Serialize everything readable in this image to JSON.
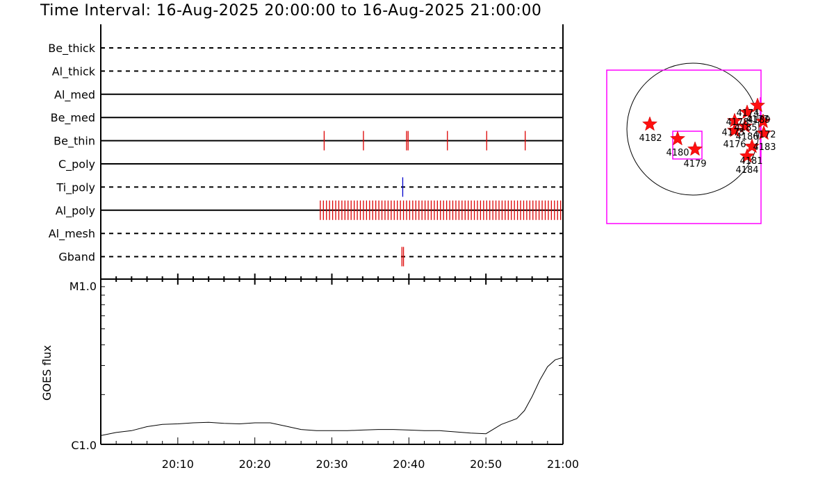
{
  "title": "Time Interval: 16-Aug-2025 20:00:00 to 16-Aug-2025 21:00:00",
  "chart_data": [
    {
      "type": "event-timeline",
      "x_range": [
        "20:00",
        "21:00"
      ],
      "x_tick_labels": [
        "20:10",
        "20:20",
        "20:30",
        "20:40",
        "20:50",
        "21:00"
      ],
      "channels": [
        {
          "name": "Be_thick",
          "line": "dashed",
          "events": []
        },
        {
          "name": "Al_thick",
          "line": "dashed",
          "events": []
        },
        {
          "name": "Al_med",
          "line": "solid",
          "events": []
        },
        {
          "name": "Be_med",
          "line": "solid",
          "events": []
        },
        {
          "name": "Be_thin",
          "line": "solid",
          "color": "#dd0000",
          "events": [
            29.0,
            34.1,
            39.7,
            39.9,
            45.0,
            50.1,
            55.1
          ]
        },
        {
          "name": "C_poly",
          "line": "solid",
          "events": []
        },
        {
          "name": "Ti_poly",
          "line": "dashed",
          "color": "#0000cc",
          "events": [
            39.2
          ]
        },
        {
          "name": "Al_poly",
          "line": "solid",
          "color": "#dd0000",
          "event_range": [
            28.5,
            60.0
          ],
          "event_spacing": 0.4
        },
        {
          "name": "Al_mesh",
          "line": "dashed",
          "events": []
        },
        {
          "name": "Gband",
          "line": "dashed",
          "color": "#dd0000",
          "events": [
            39.1,
            39.3
          ]
        }
      ]
    },
    {
      "type": "line",
      "ylabel": "GOES flux",
      "y_scale": "log",
      "y_tick_labels": [
        "C1.0",
        "M1.0"
      ],
      "ylim": [
        1e-06,
        1e-05
      ],
      "x": [
        0,
        2,
        4,
        6,
        8,
        10,
        12,
        14,
        16,
        18,
        20,
        22,
        24,
        26,
        28,
        30,
        32,
        34,
        36,
        38,
        40,
        42,
        44,
        46,
        48,
        50,
        52,
        54,
        55,
        56,
        57,
        58,
        59,
        60
      ],
      "y": [
        1.13e-06,
        1.18e-06,
        1.21e-06,
        1.28e-06,
        1.32e-06,
        1.33e-06,
        1.35e-06,
        1.36e-06,
        1.34e-06,
        1.33e-06,
        1.35e-06,
        1.35e-06,
        1.29e-06,
        1.23e-06,
        1.21e-06,
        1.21e-06,
        1.21e-06,
        1.22e-06,
        1.23e-06,
        1.23e-06,
        1.22e-06,
        1.21e-06,
        1.21e-06,
        1.19e-06,
        1.17e-06,
        1.16e-06,
        1.32e-06,
        1.43e-06,
        1.6e-06,
        1.95e-06,
        2.45e-06,
        2.95e-06,
        3.25e-06,
        3.35e-06
      ]
    },
    {
      "type": "scatter",
      "name": "solar-disk-map",
      "region_labels": [
        "4182",
        "4180",
        "4179",
        "4178",
        "4175",
        "4176",
        "4174",
        "4177",
        "4185",
        "4186",
        "4189",
        "4172",
        "4183",
        "4181",
        "4184"
      ]
    }
  ]
}
